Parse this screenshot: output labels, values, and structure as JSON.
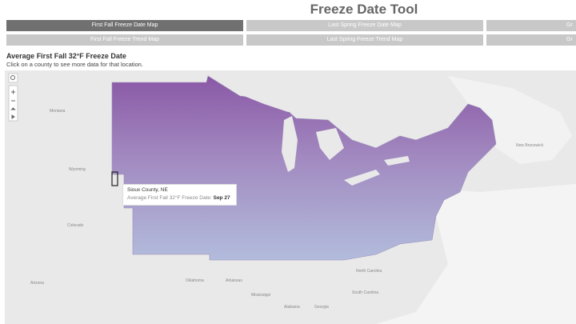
{
  "header": {
    "title": "Freeze Date Tool"
  },
  "tabs": [
    [
      "First Fall Freeze Date Map",
      "Last Spring Freeze Date Map",
      "Gr"
    ],
    [
      "First Fall Freeze Trend Map",
      "Last Spring Freeze Trend Map",
      "Gr"
    ]
  ],
  "map": {
    "title": "Average First Fall 32°F Freeze Date",
    "subtitle": "Click on a county to see more data for that location.",
    "labels": [
      "Montana",
      "Wyoming",
      "Colorado",
      "Arizona",
      "Oklahoma",
      "Arkansas",
      "Mississippi",
      "Alabama",
      "Georgia",
      "North Carolina",
      "South Carolina",
      "New Brunswick"
    ],
    "tooltip": {
      "county": "Sioux County, NE",
      "label": "Average First Fall 32°F Freeze Date:",
      "value": "Sep 27"
    }
  }
}
